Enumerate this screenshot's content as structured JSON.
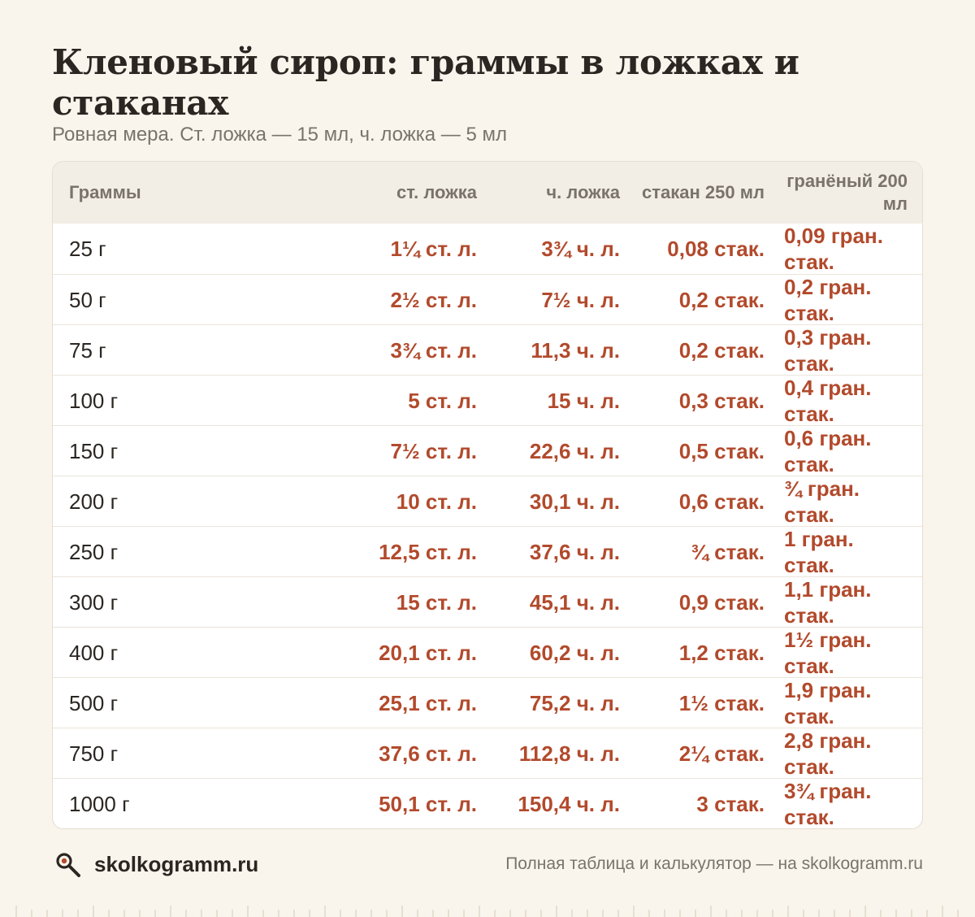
{
  "title": "Кленовый сироп: граммы в ложках и стаканах",
  "subtitle": "Ровная мера. Ст. ложка — 15 мл, ч. ложка — 5 мл",
  "table": {
    "headers": [
      "Граммы",
      "ст. ложка",
      "ч. ложка",
      "стакан 250 мл",
      "гранёный 200 мл"
    ],
    "rows": [
      [
        "25 г",
        "1¼ ст. л.",
        "3¾ ч. л.",
        "0,08 стак.",
        "0,09 гран. стак."
      ],
      [
        "50 г",
        "2½ ст. л.",
        "7½ ч. л.",
        "0,2 стак.",
        "0,2 гран. стак."
      ],
      [
        "75 г",
        "3¾ ст. л.",
        "11,3 ч. л.",
        "0,2 стак.",
        "0,3 гран. стак."
      ],
      [
        "100 г",
        "5 ст. л.",
        "15 ч. л.",
        "0,3 стак.",
        "0,4 гран. стак."
      ],
      [
        "150 г",
        "7½ ст. л.",
        "22,6 ч. л.",
        "0,5 стак.",
        "0,6 гран. стак."
      ],
      [
        "200 г",
        "10 ст. л.",
        "30,1 ч. л.",
        "0,6 стак.",
        "¾ гран. стак."
      ],
      [
        "250 г",
        "12,5 ст. л.",
        "37,6 ч. л.",
        "¾ стак.",
        "1 гран. стак."
      ],
      [
        "300 г",
        "15 ст. л.",
        "45,1 ч. л.",
        "0,9 стак.",
        "1,1 гран. стак."
      ],
      [
        "400 г",
        "20,1 ст. л.",
        "60,2 ч. л.",
        "1,2 стак.",
        "1½ гран. стак."
      ],
      [
        "500 г",
        "25,1 ст. л.",
        "75,2 ч. л.",
        "1½ стак.",
        "1,9 гран. стак."
      ],
      [
        "750 г",
        "37,6 ст. л.",
        "112,8 ч. л.",
        "2¼ стак.",
        "2,8 гран. стак."
      ],
      [
        "1000 г",
        "50,1 ст. л.",
        "150,4 ч. л.",
        "3 стак.",
        "3¾ гран. стак."
      ]
    ]
  },
  "footer": {
    "brand": "skolkogramm.ru",
    "note": "Полная таблица и калькулятор — на skolkogramm.ru",
    "icon": "magnifier-icon"
  },
  "colors": {
    "background": "#f9f5ec",
    "accent": "#b24a2c",
    "header_bg": "#f3eee5",
    "muted_text": "#7a736b"
  }
}
